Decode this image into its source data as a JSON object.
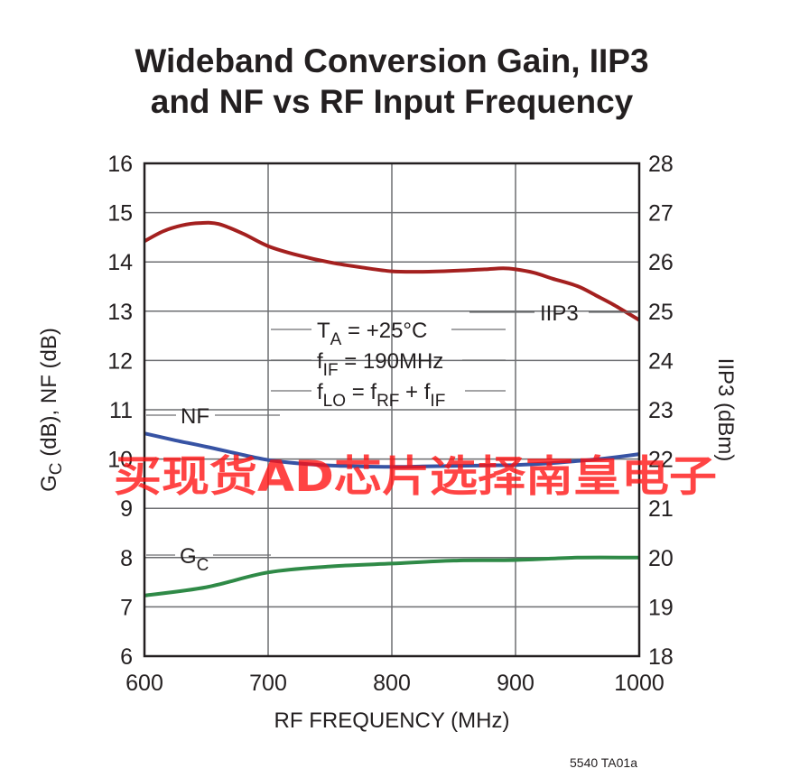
{
  "chart_data": {
    "type": "line",
    "title": "Wideband Conversion Gain, IIP3",
    "title_line2": "and NF vs RF Input Frequency",
    "xlabel": "RF FREQUENCY (MHz)",
    "ylabel": {
      "main": "G",
      "sub": "C",
      "rest": " (dB), NF (dB)"
    },
    "y2label": "IIP3 (dBm)",
    "xlim": [
      600,
      1000
    ],
    "ylim": [
      6,
      16
    ],
    "y2lim": [
      18,
      28
    ],
    "xticks": [
      600,
      700,
      800,
      900,
      1000
    ],
    "yticks": [
      6,
      7,
      8,
      9,
      10,
      11,
      12,
      13,
      14,
      15,
      16
    ],
    "y2ticks": [
      18,
      19,
      20,
      21,
      22,
      23,
      24,
      25,
      26,
      27,
      28
    ],
    "grid": true,
    "series": [
      {
        "name": "IIP3",
        "axis": "right",
        "color": "#a4201f",
        "x": [
          600,
          615,
          630,
          645,
          660,
          680,
          700,
          725,
          750,
          775,
          800,
          825,
          850,
          875,
          890,
          900,
          915,
          930,
          950,
          965,
          980,
          1000
        ],
        "values": [
          26.42,
          26.62,
          26.74,
          26.79,
          26.77,
          26.57,
          26.32,
          26.13,
          25.99,
          25.89,
          25.81,
          25.8,
          25.82,
          25.85,
          25.87,
          25.85,
          25.78,
          25.66,
          25.51,
          25.32,
          25.12,
          24.82
        ]
      },
      {
        "name": "NF",
        "axis": "left",
        "color": "#3753a4",
        "x": [
          600,
          625,
          650,
          675,
          700,
          725,
          750,
          775,
          800,
          825,
          850,
          875,
          900,
          925,
          950,
          975,
          1000
        ],
        "values": [
          10.52,
          10.38,
          10.25,
          10.11,
          9.98,
          9.91,
          9.87,
          9.85,
          9.84,
          9.85,
          9.86,
          9.87,
          9.88,
          9.91,
          9.96,
          10.02,
          10.1
        ]
      },
      {
        "name": "GC",
        "label": {
          "main": "G",
          "sub": "C"
        },
        "axis": "left",
        "color": "#2f8a47",
        "x": [
          600,
          650,
          700,
          750,
          800,
          850,
          900,
          950,
          1000
        ],
        "values": [
          7.23,
          7.4,
          7.7,
          7.82,
          7.88,
          7.94,
          7.95,
          8.0,
          8.0
        ]
      }
    ],
    "conditions": [
      {
        "main": "T",
        "sub": "A",
        "rest": " = +25°C"
      },
      {
        "main": "f",
        "sub": "IF",
        "rest": " = 190MHz"
      },
      {
        "parts": [
          {
            "t": "f"
          },
          {
            "t": "LO",
            "sub": true
          },
          {
            "t": " = f"
          },
          {
            "t": "RF",
            "sub": true
          },
          {
            "t": " + f"
          },
          {
            "t": "IF",
            "sub": true
          }
        ]
      }
    ],
    "figure_id": "5540 TA01a"
  },
  "watermark": "买现货AD芯片选择南皇电子"
}
